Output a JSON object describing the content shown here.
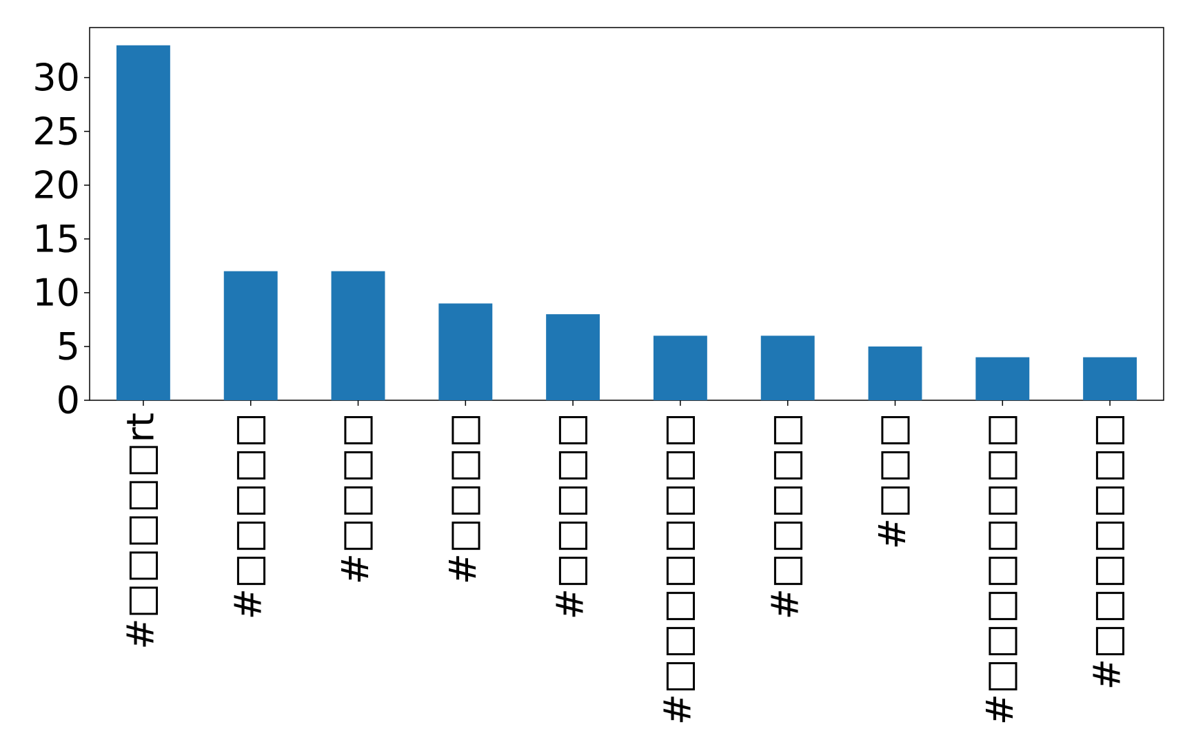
{
  "chart_data": {
    "type": "bar",
    "categories": [
      "#□□□□□rt",
      "#□□□□□",
      "#□□□□",
      "#□□□□",
      "#□□□□□",
      "#□□□□□□□□",
      "#□□□□□",
      "#□□□",
      "#□□□□□□□□",
      "#□□□□□□□"
    ],
    "values": [
      33,
      12,
      12,
      9,
      8,
      6,
      6,
      5,
      4,
      4
    ],
    "color": "#1f77b4",
    "ylim": [
      0,
      34.65
    ],
    "yticks": [
      0,
      5,
      10,
      15,
      20,
      25,
      30
    ],
    "grid": false
  }
}
